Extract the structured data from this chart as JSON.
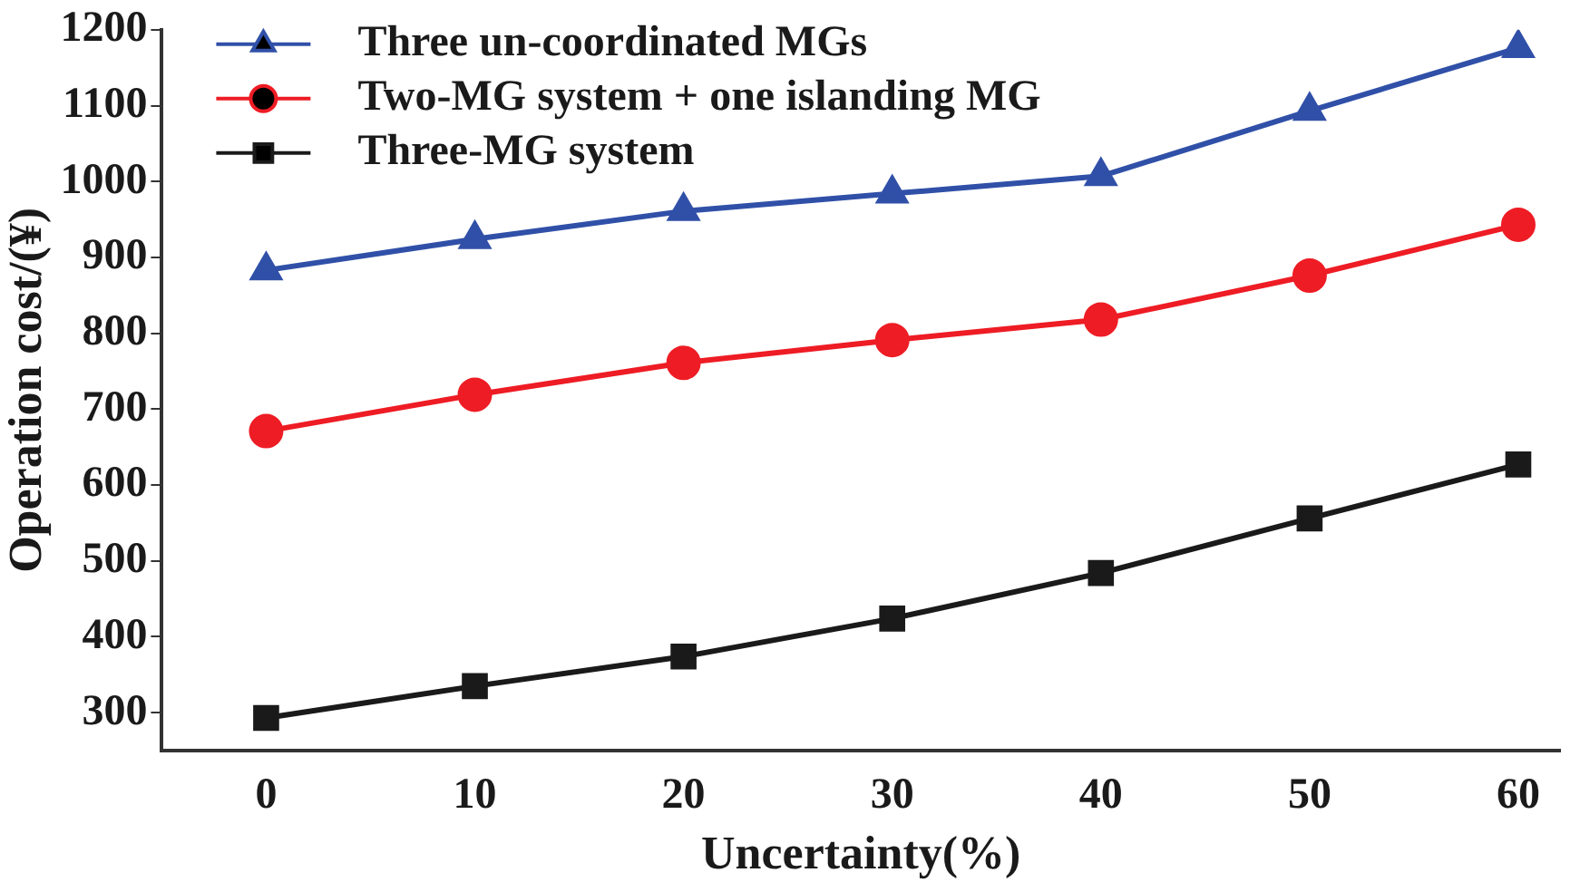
{
  "chart_data": {
    "type": "line",
    "xlabel": "Uncertainty(%)",
    "ylabel": "Operation cost/(¥)",
    "x": [
      0,
      10,
      20,
      30,
      40,
      50,
      60
    ],
    "series": [
      {
        "name": "Three un-coordinated MGs",
        "color": "#3050a8",
        "marker": "triangle",
        "values": [
          883,
          924,
          961,
          984,
          1007,
          1093,
          1176
        ]
      },
      {
        "name": "Two-MG system + one islanding MG",
        "color": "#ee1c24",
        "marker": "circle",
        "values": [
          671,
          719,
          761,
          791,
          818,
          876,
          943
        ]
      },
      {
        "name": "Three-MG system",
        "color": "#1a1a1a",
        "marker": "square",
        "values": [
          293,
          335,
          374,
          424,
          484,
          556,
          627
        ]
      }
    ],
    "xlim": [
      -5,
      62
    ],
    "xticks": [
      0,
      10,
      20,
      30,
      40,
      50,
      60
    ],
    "ylim": [
      250,
      1200
    ],
    "yticks": [
      300,
      400,
      500,
      600,
      700,
      800,
      900,
      1000,
      1100,
      1200
    ],
    "grid": false,
    "legend": "top left",
    "line_style": "solid"
  }
}
